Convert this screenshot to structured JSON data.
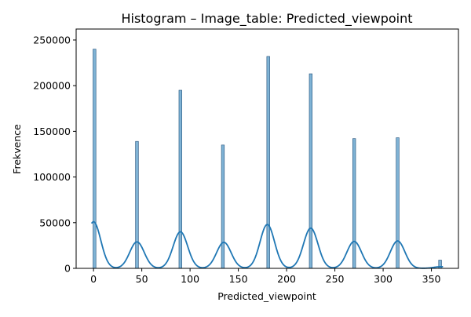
{
  "chart_data": {
    "type": "histogram",
    "title": "Histogram – Image_table: Predicted_viewpoint",
    "xlabel": "Predicted_viewpoint",
    "ylabel": "Frekvence",
    "xlim": [
      -18,
      378
    ],
    "ylim": [
      0,
      262000
    ],
    "x_ticks": [
      0,
      50,
      100,
      150,
      200,
      250,
      300,
      350
    ],
    "x_tick_labels": [
      "0",
      "50",
      "100",
      "150",
      "200",
      "250",
      "300",
      "350"
    ],
    "y_ticks": [
      0,
      50000,
      100000,
      150000,
      200000,
      250000
    ],
    "y_tick_labels": [
      "0",
      "50000",
      "100000",
      "150000",
      "200000",
      "250000"
    ],
    "bins": [
      {
        "x": 1,
        "count": 240000
      },
      {
        "x": 45,
        "count": 139000
      },
      {
        "x": 90,
        "count": 195000
      },
      {
        "x": 134,
        "count": 135000
      },
      {
        "x": 181,
        "count": 232000
      },
      {
        "x": 225,
        "count": 213000
      },
      {
        "x": 270,
        "count": 142000
      },
      {
        "x": 315,
        "count": 143000
      },
      {
        "x": 359,
        "count": 9000
      }
    ],
    "bin_width": 3,
    "kde": {
      "peaks": [
        {
          "x": 0,
          "y": 51000
        },
        {
          "x": 45,
          "y": 29000
        },
        {
          "x": 90,
          "y": 40000
        },
        {
          "x": 135,
          "y": 28500
        },
        {
          "x": 180,
          "y": 48000
        },
        {
          "x": 225,
          "y": 44000
        },
        {
          "x": 270,
          "y": 29500
        },
        {
          "x": 315,
          "y": 30000
        },
        {
          "x": 360,
          "y": 1800
        }
      ],
      "sigma": 7.5
    },
    "grid": false,
    "legend": false,
    "colors": {
      "bar_fill": "#7fb3d5",
      "bar_edge": "#1f4e79",
      "kde_line": "#1f77b4",
      "axis": "#000000"
    }
  }
}
